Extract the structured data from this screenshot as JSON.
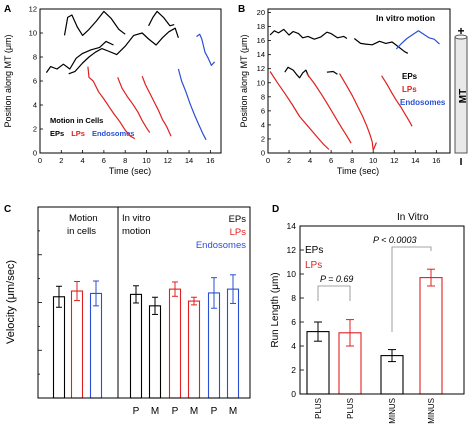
{
  "colors": {
    "ep": "#000000",
    "lp": "#e02020",
    "endo": "#2a4fd6",
    "axis": "#000000"
  },
  "panels": {
    "A": {
      "letter": "A",
      "legend": {
        "line1": "Motion in Cells",
        "ep": "EPs",
        "lp": "LPs",
        "endo": "Endosomes"
      }
    },
    "B": {
      "letter": "B",
      "title": "In vitro motion",
      "legend": {
        "ep": "EPs",
        "lp": "LPs",
        "endo": "Endosomes"
      }
    },
    "C": {
      "letter": "C",
      "group1": {
        "line1": "Motion",
        "line2": "in cells"
      },
      "group2": {
        "line1": "In vitro",
        "line2": "motion"
      },
      "legend": {
        "ep": "EPs",
        "lp": "LPs",
        "endo": "Endosomes"
      }
    },
    "D": {
      "letter": "D",
      "title": "In Vitro",
      "legend": {
        "ep": "EPs",
        "lp": "LPs"
      },
      "p_plus": "P = 0.69",
      "p_minus": "P < 0.0003"
    },
    "mt": {
      "label": "MT",
      "plus": "+",
      "minus": "I"
    }
  },
  "chart_data": [
    {
      "panel": "A",
      "type": "line",
      "xlabel": "Time (sec)",
      "ylabel": "Position along MT (μm)",
      "xlim": [
        0,
        17
      ],
      "ylim": [
        0,
        12
      ],
      "xticks": [
        0,
        2,
        4,
        6,
        8,
        10,
        12,
        14,
        16
      ],
      "yticks": [
        0,
        2,
        4,
        6,
        8,
        10,
        12
      ],
      "series": [
        {
          "group": "ep",
          "points": [
            [
              2.3,
              9.8
            ],
            [
              2.6,
              11.3
            ],
            [
              3.0,
              11.5
            ],
            [
              3.5,
              10.5
            ],
            [
              4.0,
              9.8
            ],
            [
              4.6,
              10.3
            ],
            [
              5.3,
              11.0
            ],
            [
              6.0,
              11.8
            ],
            [
              6.7,
              11.2
            ],
            [
              7.4,
              10.3
            ],
            [
              8.0,
              9.9
            ]
          ]
        },
        {
          "group": "ep",
          "points": [
            [
              0.6,
              6.7
            ],
            [
              1.0,
              7.2
            ],
            [
              1.6,
              7.0
            ],
            [
              2.2,
              7.4
            ],
            [
              2.8,
              7.0
            ],
            [
              3.4,
              7.9
            ],
            [
              4.0,
              8.3
            ],
            [
              4.8,
              8.6
            ],
            [
              5.6,
              8.8
            ],
            [
              6.2,
              9.3
            ],
            [
              6.9,
              9.0
            ]
          ]
        },
        {
          "group": "ep",
          "points": [
            [
              2.7,
              6.6
            ],
            [
              3.3,
              6.8
            ],
            [
              4.0,
              7.5
            ],
            [
              4.6,
              8.0
            ],
            [
              5.2,
              8.4
            ],
            [
              5.8,
              8.7
            ],
            [
              6.4,
              8.5
            ],
            [
              7.2,
              8.2
            ],
            [
              8.0,
              8.9
            ],
            [
              8.8,
              9.8
            ],
            [
              9.6,
              10.0
            ],
            [
              10.2,
              9.5
            ],
            [
              10.9,
              9.0
            ],
            [
              11.5,
              9.6
            ],
            [
              12.1,
              10.1
            ],
            [
              12.7,
              10.4
            ],
            [
              13.0,
              9.6
            ]
          ]
        },
        {
          "group": "ep",
          "points": [
            [
              10.2,
              10.6
            ],
            [
              10.6,
              11.3
            ],
            [
              11.0,
              11.8
            ],
            [
              11.6,
              11.3
            ],
            [
              12.2,
              10.6
            ],
            [
              12.6,
              10.7
            ]
          ]
        },
        {
          "group": "lp",
          "points": [
            [
              4.5,
              7.2
            ],
            [
              4.6,
              6.3
            ],
            [
              5.0,
              6.0
            ],
            [
              5.5,
              5.1
            ],
            [
              6.0,
              4.5
            ],
            [
              6.6,
              3.7
            ],
            [
              7.0,
              3.2
            ],
            [
              7.5,
              2.6
            ],
            [
              8.0,
              1.9
            ],
            [
              8.5,
              1.4
            ],
            [
              8.9,
              1.2
            ]
          ]
        },
        {
          "group": "lp",
          "points": [
            [
              7.3,
              6.3
            ],
            [
              7.7,
              5.4
            ],
            [
              8.2,
              4.7
            ],
            [
              8.7,
              4.1
            ],
            [
              9.2,
              3.4
            ],
            [
              9.6,
              2.7
            ],
            [
              10.0,
              2.1
            ],
            [
              10.3,
              1.7
            ]
          ]
        },
        {
          "group": "lp",
          "points": [
            [
              9.6,
              6.4
            ],
            [
              9.9,
              5.7
            ],
            [
              10.3,
              5.0
            ],
            [
              10.7,
              4.3
            ],
            [
              11.1,
              3.6
            ],
            [
              11.5,
              2.8
            ],
            [
              11.9,
              2.2
            ],
            [
              12.3,
              1.4
            ]
          ]
        },
        {
          "group": "endo",
          "points": [
            [
              13.0,
              7.0
            ],
            [
              13.3,
              6.0
            ],
            [
              13.7,
              5.1
            ],
            [
              14.1,
              4.1
            ],
            [
              14.5,
              3.2
            ],
            [
              14.9,
              2.4
            ],
            [
              15.3,
              1.6
            ],
            [
              15.6,
              1.1
            ]
          ]
        },
        {
          "group": "endo",
          "points": [
            [
              14.7,
              9.7
            ],
            [
              15.0,
              9.9
            ],
            [
              15.2,
              9.5
            ],
            [
              15.5,
              8.4
            ],
            [
              15.8,
              7.9
            ],
            [
              16.1,
              7.3
            ],
            [
              16.4,
              7.6
            ]
          ]
        }
      ]
    },
    {
      "panel": "B",
      "type": "line",
      "xlabel": "Time (sec)",
      "ylabel": "Position along MT (μm)",
      "xlim": [
        0,
        17.3
      ],
      "ylim": [
        0,
        20.5
      ],
      "xticks": [
        0,
        2,
        4,
        6,
        8,
        10,
        12,
        14,
        16
      ],
      "yticks": [
        0,
        2,
        4,
        6,
        8,
        10,
        12,
        14,
        16,
        18,
        20
      ],
      "series": [
        {
          "group": "ep",
          "points": [
            [
              0.2,
              16.8
            ],
            [
              0.6,
              17.4
            ],
            [
              1.0,
              17.1
            ],
            [
              1.5,
              17.6
            ],
            [
              2.0,
              16.8
            ],
            [
              2.4,
              17.3
            ],
            [
              2.9,
              17.0
            ],
            [
              3.3,
              16.4
            ],
            [
              3.8,
              16.6
            ],
            [
              4.4,
              16.2
            ],
            [
              5.0,
              16.5
            ],
            [
              5.6,
              17.2
            ],
            [
              6.0,
              17.0
            ],
            [
              6.6,
              16.4
            ],
            [
              7.2,
              16.6
            ],
            [
              7.5,
              16.3
            ]
          ]
        },
        {
          "group": "ep",
          "points": [
            [
              8.2,
              16.3
            ],
            [
              8.8,
              15.6
            ],
            [
              9.3,
              15.5
            ],
            [
              9.9,
              15.4
            ],
            [
              10.6,
              15.9
            ],
            [
              11.2,
              15.6
            ],
            [
              11.8,
              15.8
            ],
            [
              12.4,
              15.1
            ],
            [
              13.0,
              14.4
            ],
            [
              13.3,
              14.2
            ]
          ]
        },
        {
          "group": "ep",
          "points": [
            [
              1.6,
              11.5
            ],
            [
              1.9,
              12.2
            ],
            [
              2.4,
              11.8
            ],
            [
              2.7,
              11.2
            ],
            [
              3.0,
              10.7
            ],
            [
              3.3,
              11.4
            ],
            [
              3.6,
              11.8
            ],
            [
              3.9,
              10.8
            ]
          ]
        },
        {
          "group": "ep",
          "points": [
            [
              5.6,
              11.5
            ],
            [
              6.2,
              11.6
            ],
            [
              6.6,
              11.2
            ]
          ]
        },
        {
          "group": "lp",
          "points": [
            [
              0.2,
              11.6
            ],
            [
              0.9,
              10.0
            ],
            [
              1.6,
              8.5
            ],
            [
              2.3,
              6.9
            ],
            [
              3.0,
              5.2
            ],
            [
              3.8,
              3.8
            ],
            [
              4.6,
              2.4
            ],
            [
              5.3,
              1.2
            ],
            [
              5.8,
              0.5
            ]
          ]
        },
        {
          "group": "lp",
          "points": [
            [
              3.7,
              11.3
            ],
            [
              4.4,
              9.9
            ],
            [
              5.1,
              8.3
            ],
            [
              5.8,
              6.6
            ],
            [
              6.4,
              5.1
            ],
            [
              7.0,
              3.6
            ],
            [
              7.5,
              2.4
            ],
            [
              7.9,
              1.4
            ]
          ]
        },
        {
          "group": "lp",
          "points": [
            [
              6.8,
              11.3
            ],
            [
              7.4,
              9.8
            ],
            [
              8.0,
              8.2
            ],
            [
              8.5,
              6.7
            ],
            [
              9.0,
              5.2
            ],
            [
              9.4,
              3.8
            ],
            [
              9.7,
              2.6
            ],
            [
              9.9,
              1.6
            ],
            [
              10.0,
              0.4
            ],
            [
              10.3,
              1.5
            ]
          ]
        },
        {
          "group": "lp",
          "points": [
            [
              10.8,
              11.0
            ],
            [
              11.3,
              9.8
            ],
            [
              11.8,
              8.5
            ],
            [
              12.2,
              7.5
            ],
            [
              12.6,
              6.6
            ],
            [
              13.0,
              5.6
            ],
            [
              13.4,
              4.6
            ],
            [
              13.7,
              3.8
            ]
          ]
        },
        {
          "group": "endo",
          "points": [
            [
              12.2,
              14.8
            ],
            [
              12.7,
              15.6
            ],
            [
              13.2,
              16.3
            ],
            [
              13.8,
              16.9
            ],
            [
              14.3,
              17.4
            ],
            [
              14.8,
              16.9
            ],
            [
              15.3,
              16.4
            ],
            [
              15.8,
              16.2
            ],
            [
              16.3,
              15.5
            ]
          ]
        }
      ]
    },
    {
      "panel": "C",
      "type": "bar",
      "ylabel": "Velocity (μm/sec)",
      "ylim": [
        0,
        4
      ],
      "categories": [
        "",
        "",
        "",
        "P",
        "M",
        "P",
        "M",
        "P",
        "M"
      ],
      "groups": [
        "ep",
        "lp",
        "endo",
        "ep",
        "ep",
        "lp",
        "lp",
        "endo",
        "endo"
      ],
      "values": [
        2.12,
        2.24,
        2.19,
        2.17,
        1.93,
        2.28,
        2.03,
        2.2,
        2.28
      ],
      "errors": [
        0.22,
        0.2,
        0.26,
        0.18,
        0.18,
        0.15,
        0.08,
        0.32,
        0.3
      ]
    },
    {
      "panel": "D",
      "type": "bar",
      "ylabel": "Run Length (μm)",
      "ylim": [
        0,
        14
      ],
      "yticks": [
        0,
        2,
        4,
        6,
        8,
        10,
        12,
        14
      ],
      "categories": [
        "PLUS",
        "PLUS",
        "MINUS",
        "MINUS"
      ],
      "groups": [
        "ep",
        "lp",
        "ep",
        "lp"
      ],
      "values": [
        5.2,
        5.1,
        3.2,
        9.7
      ],
      "errors": [
        0.8,
        1.1,
        0.5,
        0.7
      ]
    }
  ]
}
